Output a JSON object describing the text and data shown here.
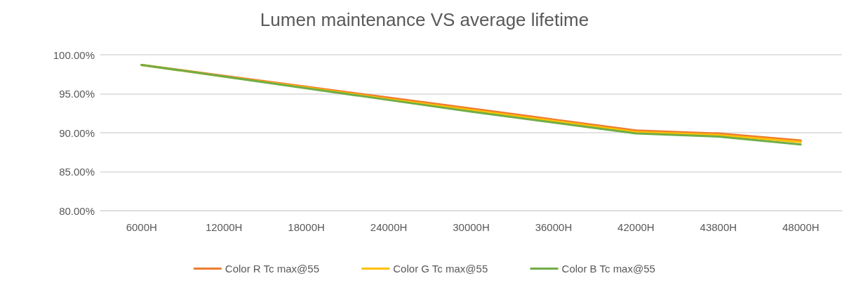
{
  "chart_data": {
    "type": "line",
    "title": "Lumen maintenance VS average lifetime",
    "categories": [
      "6000H",
      "12000H",
      "18000H",
      "24000H",
      "30000H",
      "36000H",
      "42000H",
      "43800H",
      "48000H"
    ],
    "series": [
      {
        "name": "Color R Tc max@55",
        "color": "#ed7d31",
        "values": [
          98.7,
          97.3,
          95.9,
          94.5,
          93.1,
          91.7,
          90.3,
          89.9,
          89.0
        ]
      },
      {
        "name": "Color G Tc max@55",
        "color": "#ffc000",
        "values": [
          98.7,
          97.2,
          95.8,
          94.3,
          92.9,
          91.5,
          90.1,
          89.7,
          88.8
        ]
      },
      {
        "name": "Color B Tc max@55",
        "color": "#70ad47",
        "values": [
          98.7,
          97.2,
          95.7,
          94.2,
          92.7,
          91.3,
          89.9,
          89.5,
          88.5
        ]
      }
    ],
    "ylim": [
      80,
      100
    ],
    "yticks": [
      {
        "value": 80,
        "label": "80.00%"
      },
      {
        "value": 85,
        "label": "85.00%"
      },
      {
        "value": 90,
        "label": "90.00%"
      },
      {
        "value": 95,
        "label": "95.00%"
      },
      {
        "value": 100,
        "label": "100.00%"
      }
    ],
    "grid": "y",
    "legend": "bottom",
    "marker": "none",
    "line_style": "solid"
  }
}
